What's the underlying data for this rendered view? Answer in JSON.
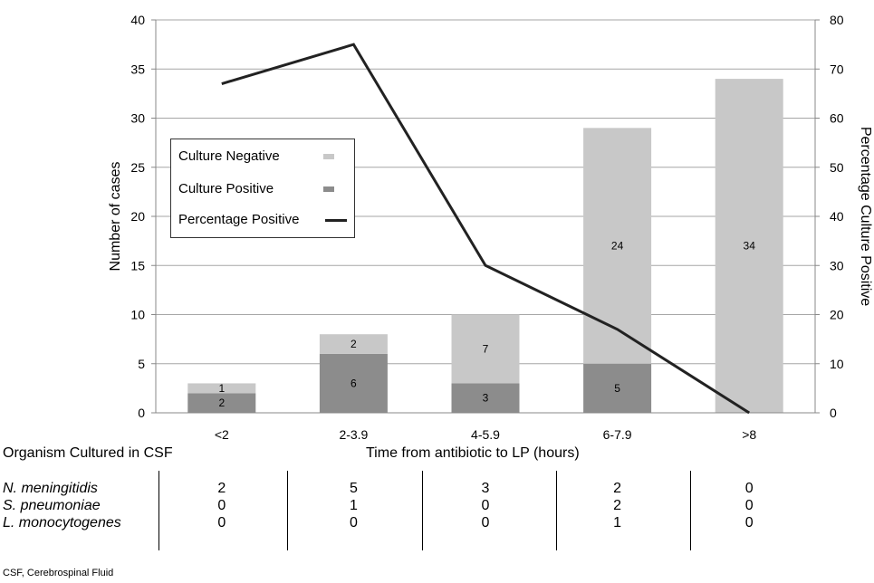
{
  "chart_data": {
    "type": "bar",
    "stacked": true,
    "categories": [
      "<2",
      "2-3.9",
      "4-5.9",
      "6-7.9",
      ">8"
    ],
    "series": [
      {
        "name": "Culture Positive",
        "values": [
          2,
          6,
          3,
          5,
          0
        ],
        "color": "#8c8c8c",
        "axis": "left"
      },
      {
        "name": "Culture Negative",
        "values": [
          1,
          2,
          7,
          24,
          34
        ],
        "color": "#c8c8c8",
        "axis": "left"
      },
      {
        "name": "Percentage Positive",
        "type": "line",
        "values": [
          67,
          75,
          30,
          17,
          0
        ],
        "color": "#222222",
        "axis": "right"
      }
    ],
    "bar_labels": {
      "positive": [
        "2",
        "6",
        "3",
        "5",
        ""
      ],
      "negative": [
        "1",
        "2",
        "7",
        "24",
        "34"
      ]
    },
    "xlabel": "Time from antibiotic to LP (hours)",
    "ylabel": "Number  of cases",
    "y2label": "Percentage Culture Positive",
    "ylim": [
      0,
      40
    ],
    "y2lim": [
      0,
      80
    ],
    "yticks": [
      "0",
      "5",
      "10",
      "15",
      "20",
      "25",
      "30",
      "35",
      "40"
    ],
    "y2ticks": [
      "0",
      "10",
      "20",
      "30",
      "40",
      "50",
      "60",
      "70",
      "80"
    ],
    "grid": true,
    "legend_position": "upper-left",
    "legend": [
      {
        "label": "Culture Negative",
        "color": "#c8c8c8",
        "kind": "square"
      },
      {
        "label": "Culture Positive",
        "color": "#8c8c8c",
        "kind": "square"
      },
      {
        "label": "Percentage Positive",
        "color": "#222222",
        "kind": "line"
      }
    ]
  },
  "organism_table": {
    "title": "Organism Cultured in CSF",
    "rows": [
      {
        "name": "N. meningitidis",
        "values": [
          "2",
          "5",
          "3",
          "2",
          "0"
        ]
      },
      {
        "name": "S. pneumoniae",
        "values": [
          "0",
          "1",
          "0",
          "2",
          "0"
        ]
      },
      {
        "name": "L. monocytogenes",
        "values": [
          "0",
          "0",
          "0",
          "1",
          "0"
        ]
      }
    ]
  },
  "footnote": "CSF, Cerebrospinal Fluid"
}
